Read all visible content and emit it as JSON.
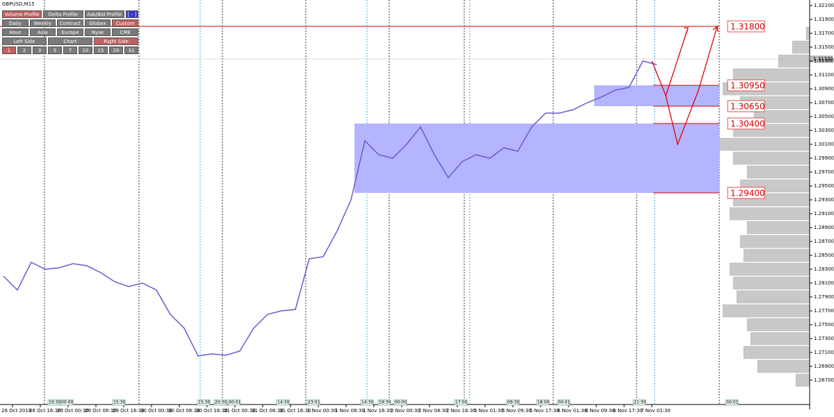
{
  "window": {
    "title": "GBPUSD,M15"
  },
  "panel": {
    "rows": [
      [
        "Volume Profile",
        "Delta Profile",
        "Ask/Bid Profile",
        "[ - ]"
      ],
      [
        "Daily",
        "Weekly",
        "Contract",
        "Globex",
        "Custom"
      ],
      [
        "Hour",
        "Asia",
        "Europe",
        "Nyse",
        "CME"
      ],
      [
        "Left Side",
        "Chart",
        "Right Side"
      ],
      [
        "1",
        "2",
        "3",
        "5",
        "7",
        "10",
        "15",
        "20",
        "31"
      ]
    ]
  },
  "chart": {
    "ylim": [
      1.2635,
      1.3218
    ],
    "yticks": [
      {
        "value": 1.321,
        "label": "1.32100"
      },
      {
        "value": 1.319,
        "label": "1.31900"
      },
      {
        "value": 1.317,
        "label": "1.31700"
      },
      {
        "value": 1.315,
        "label": "1.31500"
      },
      {
        "value": 1.313,
        "label": "1.31300"
      },
      {
        "value": 1.311,
        "label": "1.31100"
      },
      {
        "value": 1.309,
        "label": "1.30900"
      },
      {
        "value": 1.307,
        "label": "1.30700"
      },
      {
        "value": 1.305,
        "label": "1.30500"
      },
      {
        "value": 1.303,
        "label": "1.30300"
      },
      {
        "value": 1.301,
        "label": "1.30100"
      },
      {
        "value": 1.299,
        "label": "1.29900"
      },
      {
        "value": 1.297,
        "label": "1.29700"
      },
      {
        "value": 1.295,
        "label": "1.29500"
      },
      {
        "value": 1.293,
        "label": "1.29300"
      },
      {
        "value": 1.291,
        "label": "1.29100"
      },
      {
        "value": 1.289,
        "label": "1.28900"
      },
      {
        "value": 1.287,
        "label": "1.28700"
      },
      {
        "value": 1.285,
        "label": "1.28500"
      },
      {
        "value": 1.283,
        "label": "1.28300"
      },
      {
        "value": 1.281,
        "label": "1.28100"
      },
      {
        "value": 1.279,
        "label": "1.27900"
      },
      {
        "value": 1.277,
        "label": "1.27700"
      },
      {
        "value": 1.275,
        "label": "1.27500"
      },
      {
        "value": 1.273,
        "label": "1.27300"
      },
      {
        "value": 1.271,
        "label": "1.27100"
      },
      {
        "value": 1.269,
        "label": "1.26900"
      },
      {
        "value": 1.267,
        "label": "1.26700"
      }
    ],
    "time_labels": [
      "26 Oct 2018",
      "26 Oct 16:30",
      "29 Oct 00:30",
      "29 Oct 08:30",
      "29 Oct 16:30",
      "30 Oct 00:30",
      "30 Oct 08:30",
      "30 Oct 16:30",
      "31 Oct 00:30",
      "31 Oct 08:30",
      "31 Oct 16:30",
      "1 Nov 00:30",
      "1 Nov 08:30",
      "1 Nov 16:30",
      "2 Nov 00:30",
      "2 Nov 08:30",
      "2 Nov 16:30",
      "5 Nov 01:30",
      "5 Nov 09:30",
      "5 Nov 17:30",
      "6 Nov 01:30",
      "6 Nov 09:30",
      "6 Nov 17:30",
      "7 Nov 01:30"
    ],
    "price": {
      "color": "#6a5acd",
      "values": [
        1.282,
        1.28,
        1.284,
        1.283,
        1.2832,
        1.2838,
        1.2835,
        1.2825,
        1.2812,
        1.2805,
        1.281,
        1.28,
        1.2765,
        1.2745,
        1.2705,
        1.2708,
        1.2706,
        1.2712,
        1.2745,
        1.2765,
        1.277,
        1.2772,
        1.2845,
        1.2848,
        1.2885,
        1.293,
        1.3015,
        1.2995,
        1.299,
        1.301,
        1.3035,
        1.2995,
        1.2962,
        1.2985,
        1.2995,
        1.299,
        1.3005,
        1.3,
        1.3035,
        1.3055,
        1.3055,
        1.306,
        1.307,
        1.3078,
        1.3088,
        1.3092,
        1.313,
        1.3125
      ]
    },
    "current_price": {
      "value": 1.3133,
      "label": "1.31330"
    },
    "levels": [
      {
        "value": 1.318,
        "label": "1.31800"
      },
      {
        "value": 1.3095,
        "label": "1.30950"
      },
      {
        "value": 1.3065,
        "label": "1.30650"
      },
      {
        "value": 1.304,
        "label": "1.30400"
      },
      {
        "value": 1.294,
        "label": "1.29400"
      }
    ],
    "zones": [
      {
        "low": 1.294,
        "high": 1.304
      },
      {
        "low": 1.3065,
        "high": 1.3095
      }
    ],
    "volume_profile": {
      "prices": [
        1.317,
        1.315,
        1.313,
        1.311,
        1.309,
        1.307,
        1.305,
        1.303,
        1.301,
        1.299,
        1.297,
        1.295,
        1.293,
        1.291,
        1.289,
        1.287,
        1.285,
        1.283,
        1.281,
        1.279,
        1.277,
        1.275,
        1.273,
        1.271,
        1.269,
        1.267
      ],
      "volumes": [
        5,
        25,
        45,
        110,
        125,
        100,
        80,
        110,
        130,
        110,
        90,
        100,
        110,
        115,
        90,
        100,
        95,
        115,
        110,
        105,
        125,
        90,
        85,
        95,
        75,
        20
      ]
    },
    "session_tags": [
      "19:30",
      "00:00",
      "15:30",
      "15:30",
      "20:30",
      "00:01",
      "14:30",
      "23:01",
      "14:30",
      "19:30",
      "00:00",
      "17:00",
      "09:30",
      "18:00",
      "00:01",
      "21:30",
      "00:01"
    ]
  }
}
